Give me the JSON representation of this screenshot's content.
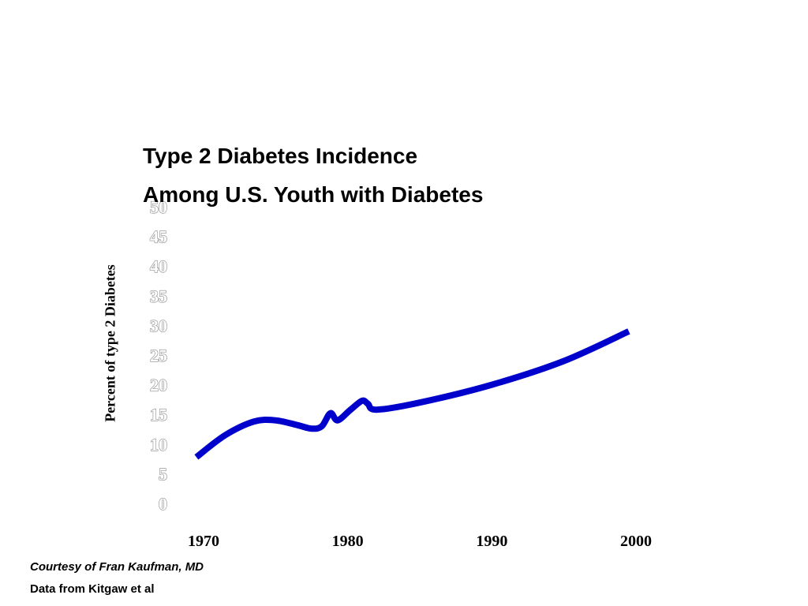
{
  "chart_data": {
    "type": "line",
    "title": "Type 2 Diabetes  Incidence",
    "subtitle": "Among U.S. Youth with Diabetes",
    "ylabel": "Percent of type 2 Diabetes",
    "xlabel": "",
    "ylim": [
      0,
      50
    ],
    "xlim": [
      1970,
      2000
    ],
    "yticks": [
      "0",
      "5",
      "10",
      "15",
      "20",
      "25",
      "30",
      "35",
      "40",
      "45",
      "50"
    ],
    "xticks": [
      "1970",
      "1980",
      "1990",
      "2000"
    ],
    "grid": false,
    "line_color": "#0000cc",
    "series": [
      {
        "x": [
          1969.5,
          1971.5,
          1973.5,
          1975.0,
          1976.5,
          1977.5,
          1978.2,
          1978.8,
          1979.3,
          1980.2,
          1981.0,
          1981.4,
          1982.0,
          1985.0,
          1990.0,
          1995.0,
          1999.5
        ],
        "values": [
          7.8,
          11.5,
          13.8,
          14.0,
          13.2,
          12.6,
          13.0,
          15.2,
          14.0,
          15.8,
          17.3,
          16.8,
          15.8,
          17.0,
          20.0,
          24.0,
          29.0
        ]
      }
    ]
  },
  "credits": {
    "line1": "Courtesy of Fran Kaufman, MD",
    "line2": "Data from Kitgaw et al"
  }
}
